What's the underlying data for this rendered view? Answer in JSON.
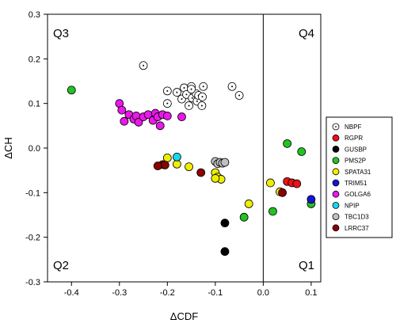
{
  "chart_data": {
    "type": "scatter",
    "xlabel": "ΔCDF",
    "ylabel": "ΔCH",
    "xlim": [
      -0.45,
      0.12
    ],
    "ylim": [
      -0.3,
      0.3
    ],
    "x_ticks": [
      -0.4,
      -0.3,
      -0.2,
      -0.1,
      0.0,
      0.1
    ],
    "x_tick_labels": [
      "-0.4",
      "-0.3",
      "-0.2",
      "-0.1",
      "0.0",
      "0.1"
    ],
    "y_ticks": [
      -0.3,
      -0.2,
      -0.1,
      0.0,
      0.1,
      0.2,
      0.3
    ],
    "y_tick_labels": [
      "-0.3",
      "-0.2",
      "-0.1",
      "0.0",
      "0.1",
      "0.2",
      "0.3"
    ],
    "reference_line_x": 0.0,
    "quadrant_labels": {
      "q3": "Q3",
      "q4": "Q4",
      "q2": "Q2",
      "q1": "Q1"
    },
    "legend_position": "right",
    "series": [
      {
        "name": "NBPF",
        "color": "#ffffff",
        "marker": "dotted-circle",
        "points": [
          [
            -0.25,
            0.185
          ],
          [
            -0.2,
            0.128
          ],
          [
            -0.18,
            0.125
          ],
          [
            -0.17,
            0.11
          ],
          [
            -0.165,
            0.135
          ],
          [
            -0.16,
            0.12
          ],
          [
            -0.155,
            0.095
          ],
          [
            -0.15,
            0.138
          ],
          [
            -0.148,
            0.112
          ],
          [
            -0.14,
            0.122
          ],
          [
            -0.138,
            0.105
          ],
          [
            -0.135,
            0.118
          ],
          [
            -0.15,
            0.132
          ],
          [
            -0.2,
            0.1
          ],
          [
            -0.125,
            0.138
          ],
          [
            -0.127,
            0.115
          ],
          [
            -0.128,
            0.095
          ],
          [
            -0.065,
            0.138
          ],
          [
            -0.05,
            0.118
          ]
        ]
      },
      {
        "name": "RGPR",
        "color": "#e8131a",
        "marker": "circle",
        "points": [
          [
            0.05,
            -0.075
          ],
          [
            0.06,
            -0.078
          ],
          [
            0.07,
            -0.08
          ]
        ]
      },
      {
        "name": "GUSBP",
        "color": "#000000",
        "marker": "circle",
        "points": [
          [
            -0.08,
            -0.168
          ],
          [
            -0.08,
            -0.232
          ]
        ]
      },
      {
        "name": "PMS2P",
        "color": "#22c322",
        "marker": "circle",
        "points": [
          [
            -0.4,
            0.13
          ],
          [
            0.05,
            0.01
          ],
          [
            0.08,
            -0.008
          ],
          [
            -0.04,
            -0.155
          ],
          [
            0.02,
            -0.142
          ],
          [
            0.1,
            -0.125
          ]
        ]
      },
      {
        "name": "SPATA31",
        "color": "#eeee00",
        "marker": "circle",
        "points": [
          [
            -0.2,
            -0.022
          ],
          [
            -0.18,
            -0.036
          ],
          [
            -0.155,
            -0.042
          ],
          [
            -0.1,
            -0.055
          ],
          [
            -0.095,
            -0.065
          ],
          [
            -0.088,
            -0.07
          ],
          [
            -0.1,
            -0.068
          ],
          [
            -0.03,
            -0.125
          ],
          [
            0.015,
            -0.078
          ],
          [
            0.035,
            -0.098
          ]
        ]
      },
      {
        "name": "TRIM51",
        "color": "#1414d6",
        "marker": "circle",
        "points": [
          [
            0.1,
            -0.115
          ]
        ]
      },
      {
        "name": "GOLGA6",
        "color": "#ea18ea",
        "marker": "circle",
        "points": [
          [
            -0.3,
            0.1
          ],
          [
            -0.295,
            0.085
          ],
          [
            -0.28,
            0.075
          ],
          [
            -0.27,
            0.065
          ],
          [
            -0.265,
            0.072
          ],
          [
            -0.26,
            0.058
          ],
          [
            -0.25,
            0.07
          ],
          [
            -0.24,
            0.075
          ],
          [
            -0.23,
            0.062
          ],
          [
            -0.225,
            0.078
          ],
          [
            -0.22,
            0.07
          ],
          [
            -0.215,
            0.05
          ],
          [
            -0.21,
            0.075
          ],
          [
            -0.2,
            0.072
          ],
          [
            -0.17,
            0.07
          ],
          [
            -0.29,
            0.06
          ]
        ]
      },
      {
        "name": "NPIP",
        "color": "#18d6ee",
        "marker": "circle",
        "points": [
          [
            -0.18,
            -0.02
          ]
        ]
      },
      {
        "name": "TBC1D3",
        "color": "#c0c0c0",
        "marker": "circle",
        "points": [
          [
            -0.1,
            -0.03
          ],
          [
            -0.095,
            -0.035
          ],
          [
            -0.09,
            -0.032
          ],
          [
            -0.085,
            -0.034
          ],
          [
            -0.08,
            -0.032
          ]
        ]
      },
      {
        "name": "LRRC37",
        "color": "#8b0000",
        "marker": "circle",
        "points": [
          [
            -0.21,
            -0.037
          ],
          [
            -0.205,
            -0.038
          ],
          [
            -0.13,
            -0.055
          ],
          [
            0.04,
            -0.1
          ],
          [
            -0.22,
            -0.04
          ]
        ]
      }
    ]
  }
}
